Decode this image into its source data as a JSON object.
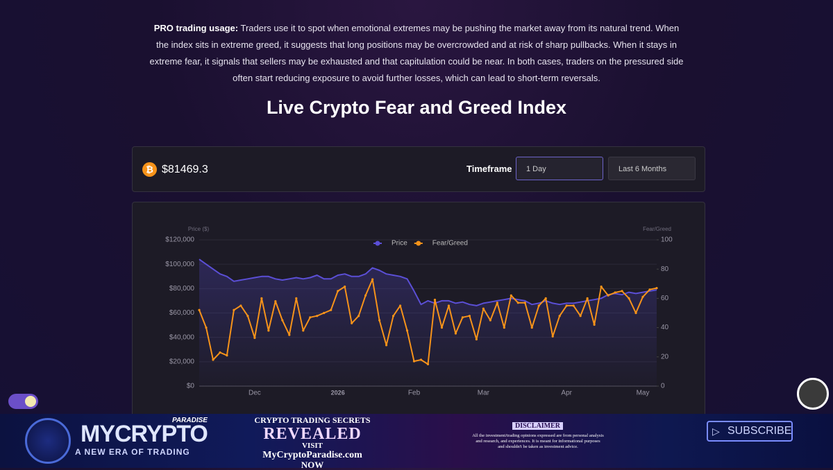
{
  "page": {
    "intro": {
      "lead": "PRO trading usage:",
      "text": "Traders use it to spot when emotional extremes may be pushing the market away from its natural trend. When the index sits in extreme greed, it suggests that long positions may be overcrowded and at risk of sharp pullbacks. When it stays in extreme fear, it signals that sellers may be exhausted and that capitulation could be near. In both cases, traders on the pressured side often start reducing exposure to avoid further losses, which can lead to short-term reversals."
    },
    "heading": "Live Crypto Fear and Greed Index",
    "toolbar": {
      "price": "$81469.3",
      "timeframe_label": "Timeframe",
      "interval": "1 Day",
      "range": "Last 6 Months"
    },
    "banner": {
      "brand_top": "PARADISE",
      "brand": "MYCRYPTO",
      "tagline": "A NEW ERA OF TRADING",
      "promo_1": "CRYPTO TRADING SECRETS",
      "promo_2": "REVEALED",
      "promo_3": "VISIT",
      "promo_4": "MyCryptoParadise.com",
      "promo_5": "NOW",
      "disclaimer_title": "DISCLAIMER",
      "disclaimer_text": "All the investment/trading opinions expressed are from personal analysis and research, and experiences. It is meant for informational purposes and shouldn't be taken as investment advice.",
      "subscribe": "SUBSCRIBE"
    }
  },
  "chart_data": {
    "type": "line",
    "y_label": "Price ($)",
    "y2_label": "Fear/Greed",
    "categories": [
      null,
      null,
      null,
      null,
      null,
      null,
      null,
      null,
      "Dec",
      null,
      null,
      null,
      null,
      null,
      null,
      null,
      null,
      null,
      null,
      null,
      "2026",
      null,
      null,
      null,
      null,
      null,
      null,
      null,
      null,
      null,
      null,
      "Feb",
      null,
      null,
      null,
      null,
      null,
      null,
      null,
      null,
      null,
      "Mar",
      null,
      null,
      null,
      null,
      null,
      null,
      null,
      null,
      null,
      null,
      null,
      "Apr",
      null,
      null,
      null,
      null,
      null,
      null,
      null,
      null,
      null,
      null,
      "May",
      null,
      null
    ],
    "series": [
      {
        "name": "Price",
        "color": "#5b4fd6",
        "area": true,
        "values": [
          104000,
          100000,
          96000,
          92000,
          90000,
          86000,
          87000,
          88000,
          89000,
          90000,
          90000,
          88000,
          87000,
          88000,
          89000,
          88000,
          89000,
          91000,
          88000,
          88000,
          91000,
          92000,
          90000,
          90000,
          92000,
          97000,
          95000,
          92000,
          91000,
          90000,
          88000,
          78000,
          67000,
          70000,
          68000,
          70000,
          70000,
          68000,
          69000,
          67000,
          66000,
          68000,
          69000,
          70000,
          71000,
          72000,
          71000,
          70000,
          67000,
          68000,
          70000,
          68000,
          67000,
          68000,
          68000,
          69000,
          70000,
          71000,
          72000,
          75000,
          76000,
          75000,
          77000,
          76000,
          77000,
          78000,
          79000
        ]
      },
      {
        "name": "Fear/Greed",
        "color": "#f7931a",
        "axis": "y2",
        "values": [
          52,
          40,
          18,
          23,
          21,
          52,
          55,
          48,
          33,
          60,
          38,
          58,
          45,
          35,
          60,
          38,
          47,
          48,
          50,
          52,
          65,
          68,
          43,
          48,
          62,
          73,
          45,
          28,
          48,
          55,
          38,
          17,
          18,
          15,
          59,
          40,
          55,
          36,
          47,
          48,
          32,
          53,
          45,
          57,
          40,
          62,
          57,
          57,
          40,
          55,
          60,
          34,
          48,
          55,
          55,
          48,
          60,
          42,
          68,
          62,
          64,
          65,
          60,
          50,
          61,
          66,
          67
        ]
      }
    ],
    "ylim": [
      0,
      120000
    ],
    "yticks": [
      {
        "value": 0,
        "label": "$0"
      },
      {
        "value": 20000,
        "label": "$20,000"
      },
      {
        "value": 40000,
        "label": "$40,000"
      },
      {
        "value": 60000,
        "label": "$60,000"
      },
      {
        "value": 80000,
        "label": "$80,000"
      },
      {
        "value": 100000,
        "label": "$100,000"
      },
      {
        "value": 120000,
        "label": "$120,000"
      }
    ],
    "y2lim": [
      0,
      100
    ],
    "y2ticks": [
      0,
      20,
      40,
      60,
      80,
      100
    ],
    "grid": true,
    "legend": "top"
  }
}
